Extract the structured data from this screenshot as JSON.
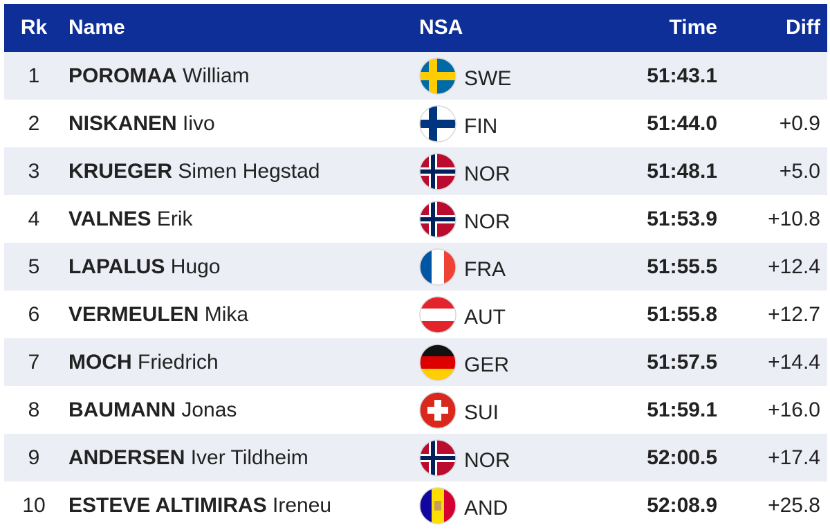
{
  "table": {
    "header": [
      "Rk",
      "Name",
      "NSA",
      "Time",
      "Diff"
    ],
    "rows": [
      {
        "rank": "1",
        "surname": "POROMAA",
        "given": "William",
        "nsa": "SWE",
        "time": "51:43.1",
        "diff": null
      },
      {
        "rank": "2",
        "surname": "NISKANEN",
        "given": "Iivo",
        "nsa": "FIN",
        "time": "51:44.0",
        "diff": "+0.9"
      },
      {
        "rank": "3",
        "surname": "KRUEGER",
        "given": "Simen Hegstad",
        "nsa": "NOR",
        "time": "51:48.1",
        "diff": "+5.0"
      },
      {
        "rank": "4",
        "surname": "VALNES",
        "given": "Erik",
        "nsa": "NOR",
        "time": "51:53.9",
        "diff": "+10.8"
      },
      {
        "rank": "5",
        "surname": "LAPALUS",
        "given": "Hugo",
        "nsa": "FRA",
        "time": "51:55.5",
        "diff": "+12.4"
      },
      {
        "rank": "6",
        "surname": "VERMEULEN",
        "given": "Mika",
        "nsa": "AUT",
        "time": "51:55.8",
        "diff": "+12.7"
      },
      {
        "rank": "7",
        "surname": "MOCH",
        "given": "Friedrich",
        "nsa": "GER",
        "time": "51:57.5",
        "diff": "+14.4"
      },
      {
        "rank": "8",
        "surname": "BAUMANN",
        "given": "Jonas",
        "nsa": "SUI",
        "time": "51:59.1",
        "diff": "+16.0"
      },
      {
        "rank": "9",
        "surname": "ANDERSEN",
        "given": "Iver Tildheim",
        "nsa": "NOR",
        "time": "52:00.5",
        "diff": "+17.4"
      },
      {
        "rank": "10",
        "surname": "ESTEVE ALTIMIRAS",
        "given": "Ireneu",
        "nsa": "AND",
        "time": "52:08.9",
        "diff": "+25.8"
      }
    ]
  }
}
